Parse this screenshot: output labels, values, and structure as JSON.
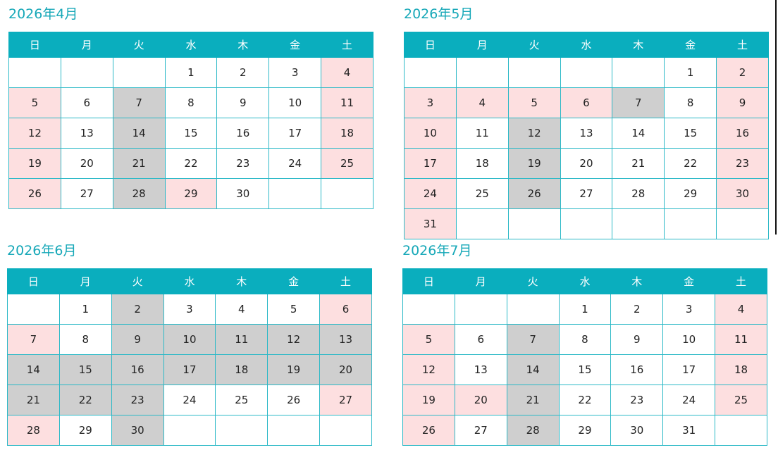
{
  "weekdays": [
    "日",
    "月",
    "火",
    "水",
    "木",
    "金",
    "土"
  ],
  "colors": {
    "header": "#0aaebe",
    "holiday": "#fddfe0",
    "closed": "#cfcfcf",
    "title": "#17a8b8"
  },
  "months": [
    {
      "title": "2026年4月",
      "weeks": [
        [
          "",
          "",
          "",
          "1",
          "2",
          "3",
          "4"
        ],
        [
          "5",
          "6",
          "7",
          "8",
          "9",
          "10",
          "11"
        ],
        [
          "12",
          "13",
          "14",
          "15",
          "16",
          "17",
          "18"
        ],
        [
          "19",
          "20",
          "21",
          "22",
          "23",
          "24",
          "25"
        ],
        [
          "26",
          "27",
          "28",
          "29",
          "30",
          "",
          ""
        ]
      ],
      "holiday_days": [
        "4",
        "5",
        "11",
        "12",
        "18",
        "19",
        "25",
        "26",
        "29"
      ],
      "closed_days": [
        "7",
        "14",
        "21",
        "28"
      ]
    },
    {
      "title": "2026年5月",
      "weeks": [
        [
          "",
          "",
          "",
          "",
          "",
          "1",
          "2"
        ],
        [
          "3",
          "4",
          "5",
          "6",
          "7",
          "8",
          "9"
        ],
        [
          "10",
          "11",
          "12",
          "13",
          "14",
          "15",
          "16"
        ],
        [
          "17",
          "18",
          "19",
          "20",
          "21",
          "22",
          "23"
        ],
        [
          "24",
          "25",
          "26",
          "27",
          "28",
          "29",
          "30"
        ],
        [
          "31",
          "",
          "",
          "",
          "",
          "",
          ""
        ]
      ],
      "holiday_days": [
        "2",
        "3",
        "4",
        "5",
        "6",
        "9",
        "10",
        "16",
        "17",
        "23",
        "24",
        "30",
        "31"
      ],
      "closed_days": [
        "7",
        "12",
        "19",
        "26"
      ]
    },
    {
      "title": "2026年6月",
      "weeks": [
        [
          "",
          "1",
          "2",
          "3",
          "4",
          "5",
          "6"
        ],
        [
          "7",
          "8",
          "9",
          "10",
          "11",
          "12",
          "13"
        ],
        [
          "14",
          "15",
          "16",
          "17",
          "18",
          "19",
          "20"
        ],
        [
          "21",
          "22",
          "23",
          "24",
          "25",
          "26",
          "27"
        ],
        [
          "28",
          "29",
          "30",
          "",
          "",
          "",
          ""
        ]
      ],
      "holiday_days": [
        "6",
        "7",
        "27",
        "28"
      ],
      "closed_days": [
        "2",
        "9",
        "10",
        "11",
        "12",
        "13",
        "14",
        "15",
        "16",
        "17",
        "18",
        "19",
        "20",
        "21",
        "22",
        "23",
        "30"
      ]
    },
    {
      "title": "2026年7月",
      "weeks": [
        [
          "",
          "",
          "",
          "1",
          "2",
          "3",
          "4"
        ],
        [
          "5",
          "6",
          "7",
          "8",
          "9",
          "10",
          "11"
        ],
        [
          "12",
          "13",
          "14",
          "15",
          "16",
          "17",
          "18"
        ],
        [
          "19",
          "20",
          "21",
          "22",
          "23",
          "24",
          "25"
        ],
        [
          "26",
          "27",
          "28",
          "29",
          "30",
          "31",
          ""
        ]
      ],
      "holiday_days": [
        "4",
        "5",
        "11",
        "12",
        "18",
        "19",
        "20",
        "25",
        "26"
      ],
      "closed_days": [
        "7",
        "14",
        "21",
        "28"
      ]
    }
  ]
}
